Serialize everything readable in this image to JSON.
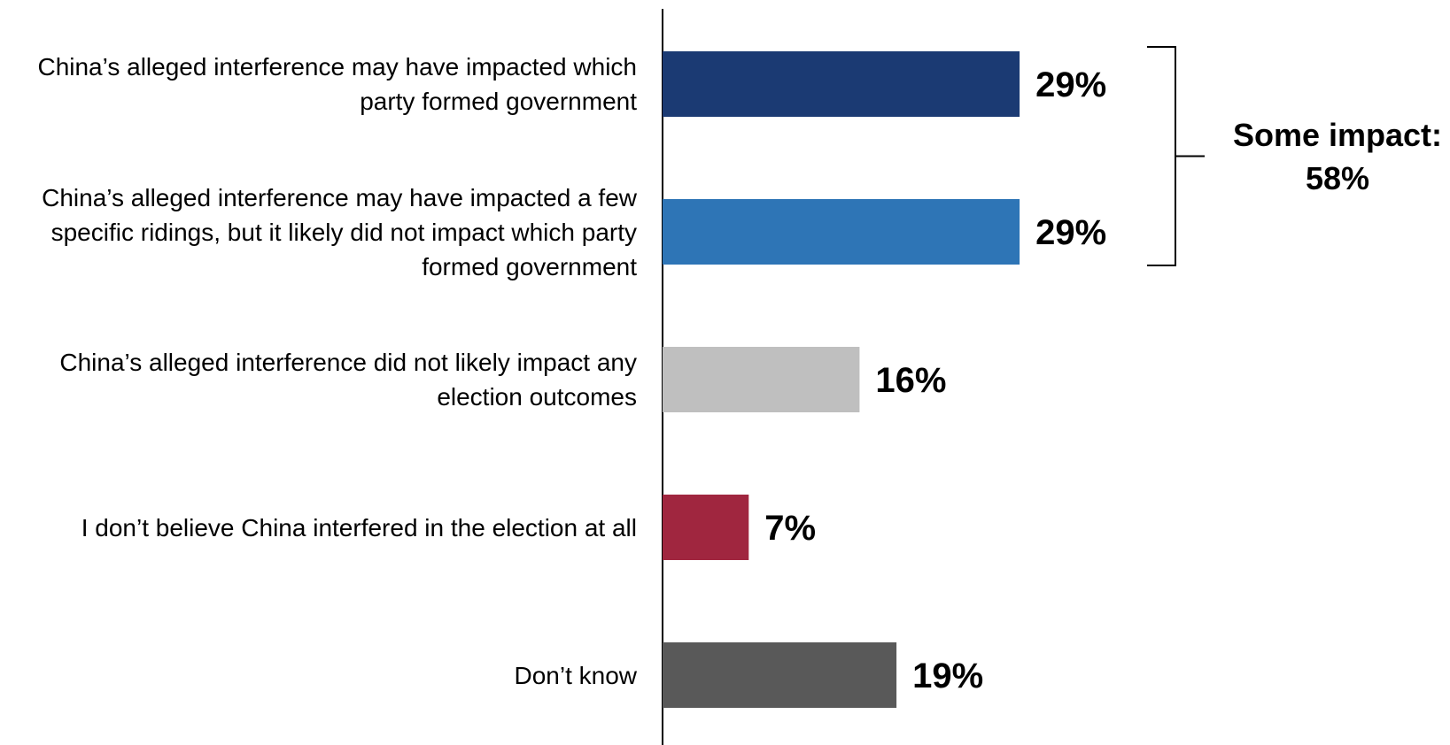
{
  "chart_data": {
    "type": "bar",
    "orientation": "horizontal",
    "categories": [
      "China’s alleged interference may have impacted which party formed government",
      "China’s alleged interference may have impacted a few specific ridings, but it likely did not impact which party formed government",
      "China’s alleged interference did not likely impact any election outcomes",
      "I don’t believe China interfered in the election at all",
      "Don’t know"
    ],
    "values": [
      29,
      29,
      16,
      7,
      19
    ],
    "value_labels": [
      "29%",
      "29%",
      "16%",
      "7%",
      "19%"
    ],
    "colors": [
      "#1b3a73",
      "#2e75b6",
      "#bfbfbf",
      "#a0263f",
      "#595959"
    ],
    "xlim": [
      0,
      60
    ],
    "grid": false,
    "annotation": {
      "text_line1": "Some impact:",
      "text_line2": "58%",
      "spans_categories": [
        0,
        1
      ]
    }
  }
}
